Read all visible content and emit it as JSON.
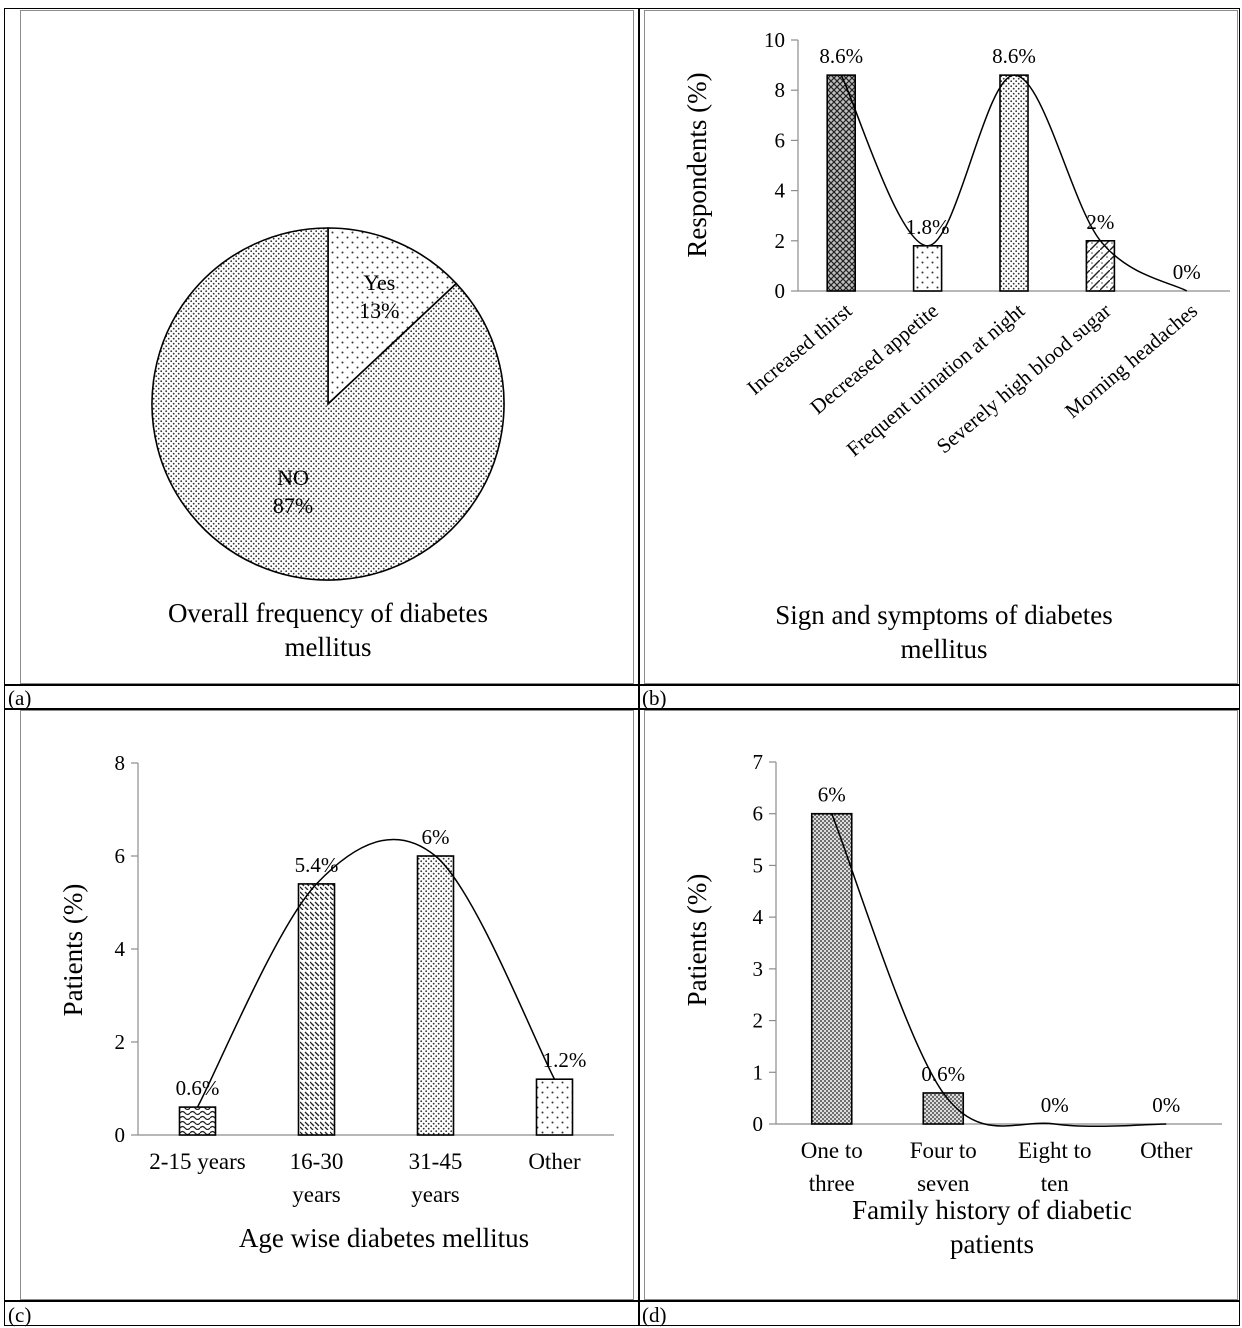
{
  "panels": {
    "a": {
      "label": "(a)"
    },
    "b": {
      "label": "(b)"
    },
    "c": {
      "label": "(c)"
    },
    "d": {
      "label": "(d)"
    }
  },
  "chart_data": [
    {
      "panel": "(a)",
      "type": "pie",
      "title": "Overall frequency of diabetes mellitus",
      "slices": [
        {
          "label": "Yes",
          "value": 13,
          "value_label": "13%"
        },
        {
          "label": "NO",
          "value": 87,
          "value_label": "87%"
        }
      ]
    },
    {
      "panel": "(b)",
      "type": "bar",
      "title": "Sign and symptoms of diabetes mellitus",
      "xlabel": "",
      "ylabel": "Respondents (%)",
      "ylim": [
        0,
        10
      ],
      "yticks": [
        0,
        2,
        4,
        6,
        8,
        10
      ],
      "categories": [
        "Increased thirst",
        "Decreased appetite",
        "Frequent urination at night",
        "Severely high blood sugar",
        "Morning headaches"
      ],
      "values": [
        8.6,
        1.8,
        8.6,
        2,
        0
      ],
      "data_labels": [
        "8.6%",
        "1.8%",
        "8.6%",
        "2%",
        "0%"
      ],
      "trendline": "smooth curve through bar tops",
      "grid": false
    },
    {
      "panel": "(c)",
      "type": "bar",
      "title": "Age wise diabetes mellitus",
      "xlabel": "",
      "ylabel": "Patients (%)",
      "ylim": [
        0,
        8
      ],
      "yticks": [
        0,
        2,
        4,
        6,
        8
      ],
      "categories": [
        [
          "2-15 years"
        ],
        [
          "16-30",
          "years"
        ],
        [
          "31-45",
          "years"
        ],
        [
          "Other"
        ]
      ],
      "values": [
        0.6,
        5.4,
        6,
        1.2
      ],
      "data_labels": [
        "0.6%",
        "5.4%",
        "6%",
        "1.2%"
      ],
      "trendline": "smooth curve through bar tops",
      "grid": false
    },
    {
      "panel": "(d)",
      "type": "bar",
      "title": "Family history of diabetic patients",
      "xlabel": "",
      "ylabel": "Patients (%)",
      "ylim": [
        0,
        7
      ],
      "yticks": [
        0,
        1,
        2,
        3,
        4,
        5,
        6,
        7
      ],
      "categories": [
        [
          "One to",
          "three"
        ],
        [
          "Four to",
          "seven"
        ],
        [
          "Eight to",
          "ten"
        ],
        [
          "Other"
        ]
      ],
      "values": [
        6,
        0.6,
        0,
        0
      ],
      "data_labels": [
        "6%",
        "0.6%",
        "0%",
        "0%"
      ],
      "trendline": "smooth curve through bar tops",
      "grid": false
    }
  ]
}
